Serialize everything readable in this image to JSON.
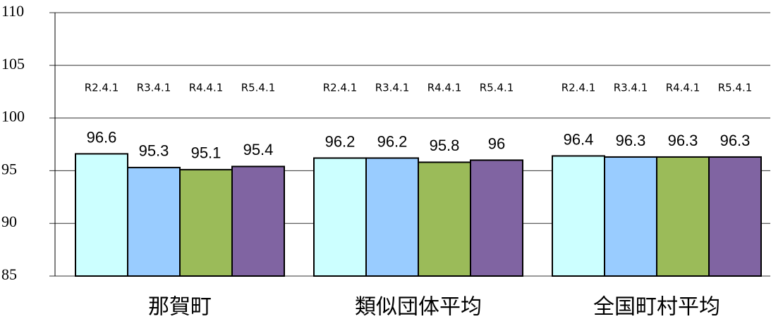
{
  "chart_data": {
    "type": "bar",
    "categories": [
      "那賀町",
      "類似団体平均",
      "全国町村平均"
    ],
    "series": [
      {
        "name": "R2.4.1",
        "color": "#ccffff",
        "values": [
          96.6,
          96.2,
          96.4
        ]
      },
      {
        "name": "R3.4.1",
        "color": "#99ccff",
        "values": [
          95.3,
          96.2,
          96.3
        ]
      },
      {
        "name": "R4.4.1",
        "color": "#9bbb59",
        "values": [
          95.1,
          95.8,
          96.3
        ]
      },
      {
        "name": "R5.4.1",
        "color": "#8064a2",
        "values": [
          95.4,
          96,
          96.3
        ]
      }
    ],
    "ylim": [
      85,
      110
    ],
    "yticks": [
      85,
      90,
      95,
      100,
      105,
      110
    ],
    "grid": true
  }
}
